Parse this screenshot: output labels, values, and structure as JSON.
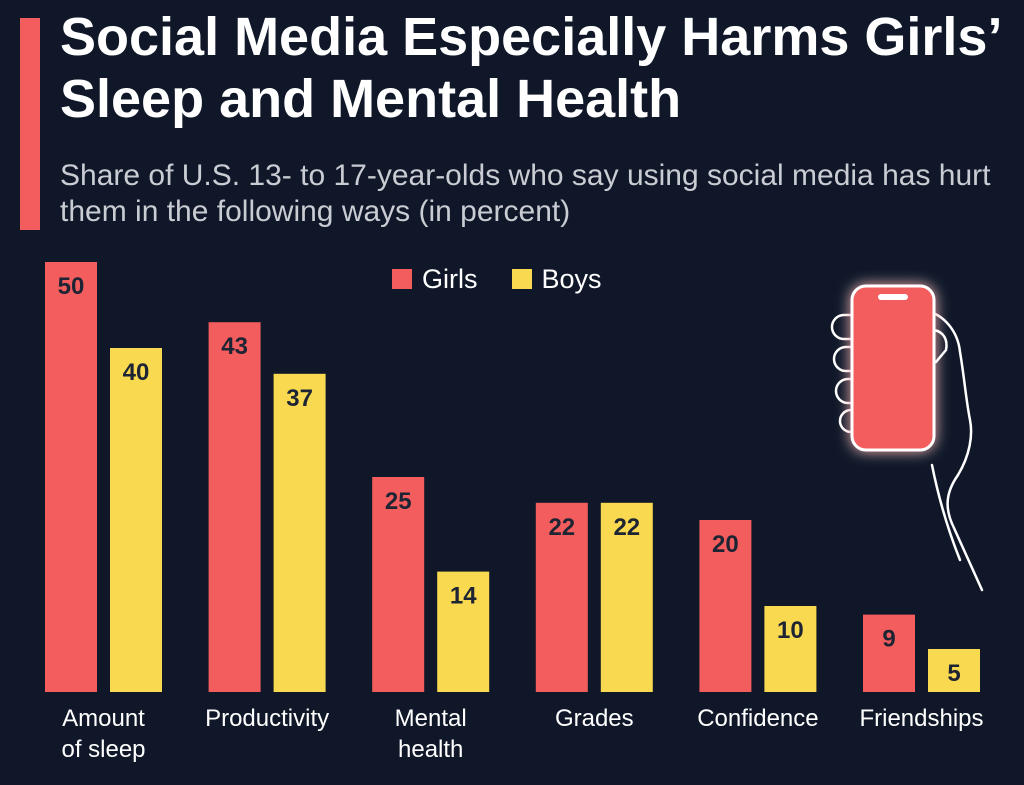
{
  "header": {
    "title": "Social Media Especially Harms Girls’ Sleep and Mental Health",
    "subtitle": "Share of U.S. 13- to 17-year-olds who say using social media has hurt them in the following ways (in percent)"
  },
  "legend": {
    "items": [
      {
        "label": "Girls",
        "color": "#f45d5d"
      },
      {
        "label": "Boys",
        "color": "#f9d94f"
      }
    ]
  },
  "colors": {
    "background": "#0f1728",
    "accent": "#f45d5d",
    "girls": "#f45d5d",
    "boys": "#f9d94f",
    "bar_label": "#1d2433",
    "category_label": "#ffffff"
  },
  "illustration": {
    "icon": "hand-holding-phone-icon"
  },
  "chart_data": {
    "type": "bar",
    "title": "Social Media Especially Harms Girls’ Sleep and Mental Health",
    "subtitle": "Share of U.S. 13- to 17-year-olds who say using social media has hurt them in the following ways (in percent)",
    "categories": [
      [
        "Amount",
        "of sleep"
      ],
      [
        "Productivity"
      ],
      [
        "Mental",
        "health"
      ],
      [
        "Grades"
      ],
      [
        "Confidence"
      ],
      [
        "Friendships"
      ]
    ],
    "series": [
      {
        "name": "Girls",
        "color": "#f45d5d",
        "values": [
          50,
          43,
          25,
          22,
          20,
          9
        ]
      },
      {
        "name": "Boys",
        "color": "#f9d94f",
        "values": [
          40,
          37,
          14,
          22,
          10,
          5
        ]
      }
    ],
    "ylim": [
      0,
      50
    ],
    "grid": false,
    "legend_position": "top-center",
    "xlabel": "",
    "ylabel": ""
  }
}
